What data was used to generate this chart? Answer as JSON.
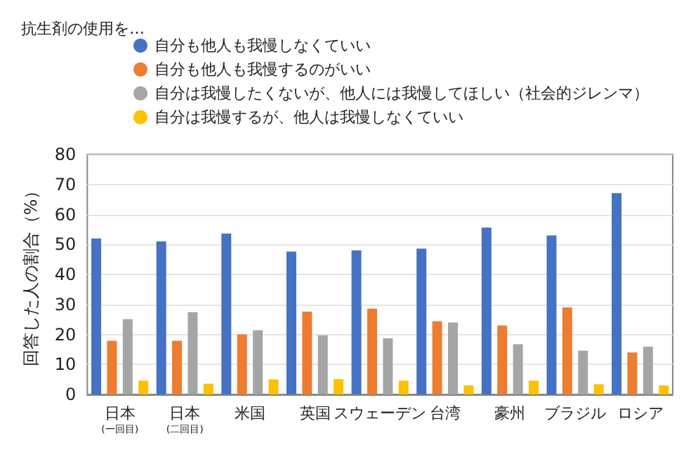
{
  "chart_data": {
    "type": "bar",
    "legend_title": "抗生剤の使用を…",
    "ylabel": "回答した人の割合（%）",
    "categories": [
      "日本\n(一回目)",
      "日本\n(二回目)",
      "米国",
      "英国",
      "スウェーデン",
      "台湾",
      "豪州",
      "ブラジル",
      "ロシア"
    ],
    "series": [
      {
        "name": "自分も他人も我慢しなくていい",
        "color": "#4472c4",
        "values": [
          52,
          51,
          53.6,
          47.6,
          48,
          48.6,
          55.6,
          53,
          67.1
        ]
      },
      {
        "name": "自分も他人も我慢するのがいい",
        "color": "#ed7d31",
        "values": [
          17.9,
          17.9,
          20,
          27.6,
          28.6,
          24.4,
          23,
          29,
          14
        ]
      },
      {
        "name": "自分は我慢したくないが、他人には我慢してほしい（社会的ジレンマ）",
        "color": "#a5a5a5",
        "values": [
          25.1,
          27.4,
          21.4,
          19.7,
          18.7,
          24,
          16.7,
          14.6,
          15.9
        ]
      },
      {
        "name": "自分は我慢するが、他人は我慢しなくていい",
        "color": "#ffc000",
        "values": [
          4.6,
          3.6,
          5,
          5.1,
          4.6,
          3,
          4.6,
          3.4,
          3
        ]
      }
    ],
    "ylim": [
      0,
      80
    ],
    "yticks": [
      0,
      10,
      20,
      30,
      40,
      50,
      60,
      70,
      80
    ],
    "grid": "y",
    "legend": "top"
  }
}
